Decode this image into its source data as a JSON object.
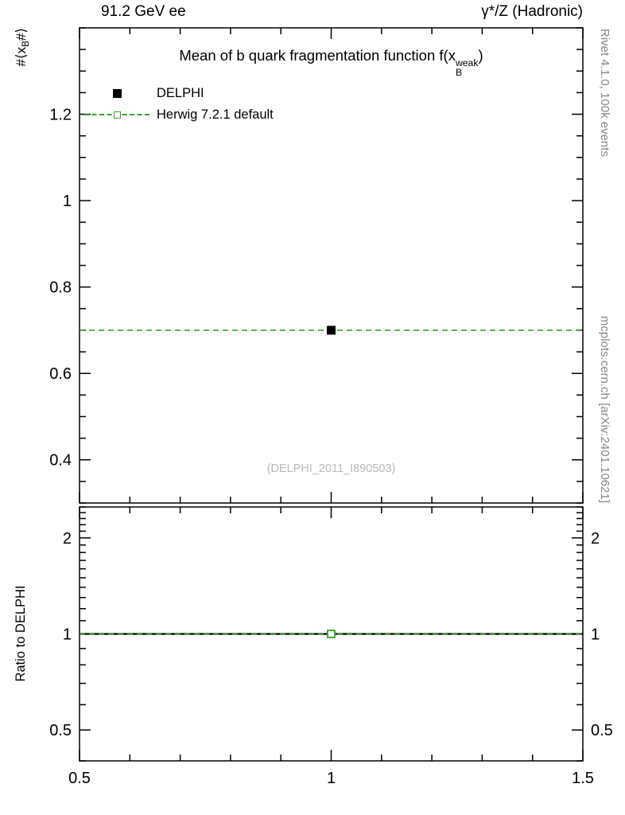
{
  "colors": {
    "data": "#000000",
    "herwig": "#33a02c",
    "frame": "#000000",
    "watermark": "#b9b9b9",
    "side_note": "#878787"
  },
  "header": {
    "left": "91.2 GeV ee",
    "right": "γ*/Z (Hadronic)"
  },
  "main_panel": {
    "title": {
      "prefix": "Mean of b quark fragmentation function f(x",
      "sup": "weak",
      "sub": "B",
      "suffix": ")"
    },
    "ylabel": {
      "prefix": "#⟨x",
      "sub": "B",
      "suffix": "#⟩"
    },
    "watermark": "(DELPHI_2011_I890503)"
  },
  "legend": {
    "items": [
      {
        "label": "DELPHI"
      },
      {
        "label": "Herwig 7.2.1 default"
      }
    ]
  },
  "ratio_panel": {
    "ylabel": "Ratio to DELPHI"
  },
  "side_notes": {
    "top": "Rivet 4.1.0, 100k events",
    "bottom": "mcplots.cern.ch [arXiv:2401.10621]"
  },
  "chart_data": [
    {
      "type": "scatter",
      "panel": "main",
      "title": "Mean of b quark fragmentation function f(x_B^weak)",
      "xlabel": "",
      "ylabel": "⟨x_B⟩",
      "xlim": [
        0.5,
        1.5
      ],
      "ylim": [
        0.3,
        1.4
      ],
      "yscale": "linear",
      "grid": false,
      "legend_position": "top-left",
      "x_ticks": {
        "major": [
          0.5,
          1,
          1.5
        ],
        "labels": [
          "0.5",
          "1",
          "1.5"
        ],
        "minor_step": 0.1
      },
      "y_ticks": {
        "major": [
          0.4,
          0.6,
          0.8,
          1,
          1.2
        ],
        "labels": [
          "0.4",
          "0.6",
          "0.8",
          "1",
          "1.2"
        ],
        "minor_step": 0.05
      },
      "series": [
        {
          "name": "DELPHI",
          "marker": "filled-square",
          "color_key": "data",
          "points": [
            {
              "x": 1,
              "y": 0.7
            }
          ]
        },
        {
          "name": "Herwig 7.2.1 default",
          "marker": "open-square",
          "line": "dashed",
          "color_key": "herwig",
          "line_value": 0.7,
          "points": [
            {
              "x": 1,
              "y": 0.7
            }
          ]
        }
      ]
    },
    {
      "type": "ratio",
      "panel": "ratio",
      "ylabel": "Ratio to DELPHI",
      "xlim": [
        0.5,
        1.5
      ],
      "ylim": [
        0.4,
        2.5
      ],
      "yscale": "log",
      "grid": false,
      "x_ticks": {
        "major": [
          0.5,
          1,
          1.5
        ],
        "labels": [
          "0.5",
          "1",
          "1.5"
        ],
        "minor_step": 0.1,
        "show_labels": true
      },
      "y_ticks": {
        "major": [
          0.5,
          1,
          2
        ],
        "labels": [
          "0.5",
          "1",
          "2"
        ],
        "minor_step": 0.1,
        "labels_both_sides": true
      },
      "series": [
        {
          "name": "DELPHI",
          "line": "solid",
          "color_key": "data",
          "line_value": 1
        },
        {
          "name": "Herwig 7.2.1 default",
          "marker": "open-square",
          "line": "dashed",
          "color_key": "herwig",
          "line_value": 1,
          "points": [
            {
              "x": 1,
              "y": 1
            }
          ]
        }
      ]
    }
  ]
}
